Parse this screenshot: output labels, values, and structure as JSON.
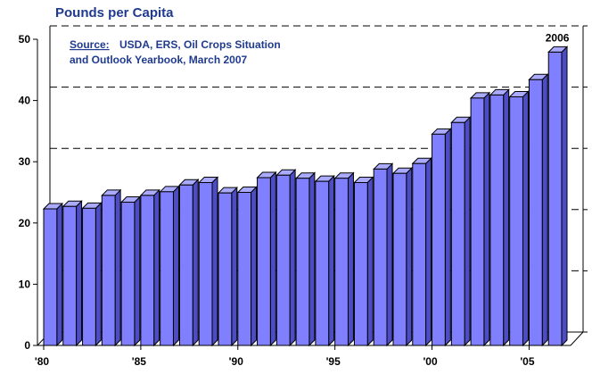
{
  "chart_data": {
    "type": "bar",
    "title": "Pounds per Capita",
    "source_label": "Source:",
    "source_lines": [
      "USDA, ERS, Oil Crops Situation",
      "and Outlook Yearbook, March 2007"
    ],
    "annotation": "2006",
    "categories": [
      "'80",
      null,
      null,
      null,
      null,
      "'85",
      null,
      null,
      null,
      null,
      "'90",
      null,
      null,
      null,
      null,
      "'95",
      null,
      null,
      null,
      null,
      "'00",
      null,
      null,
      null,
      null,
      "'05",
      null
    ],
    "values": [
      22.3,
      22.7,
      22.4,
      24.5,
      23.4,
      24.5,
      25.1,
      26.2,
      26.6,
      24.9,
      25.0,
      27.4,
      27.8,
      27.3,
      26.8,
      27.3,
      26.6,
      28.8,
      28.1,
      29.7,
      34.5,
      36.4,
      40.4,
      40.9,
      40.6,
      43.4,
      47.9
    ],
    "color": "#8080ff",
    "ylim": [
      0,
      50
    ],
    "yticks": [
      0,
      10,
      20,
      30,
      40,
      50
    ],
    "grid": true
  }
}
